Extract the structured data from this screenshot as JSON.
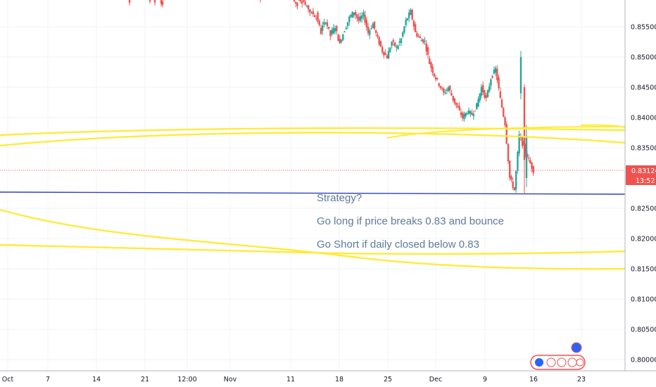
{
  "chart_data": {
    "type": "candlestick",
    "y_ticks": [
      "0.85500",
      "0.85000",
      "0.84500",
      "0.84000",
      "0.83500",
      "0.82500",
      "0.82000",
      "0.81500",
      "0.81000",
      "0.80500",
      "0.80000"
    ],
    "x_ticks": [
      "Oct",
      "7",
      "14",
      "21",
      "12:00",
      "Nov",
      "11",
      "18",
      "25",
      "Dec",
      "9",
      "16",
      "23"
    ],
    "ylim": [
      0.7975,
      0.8605
    ],
    "last_price": "0.83124",
    "countdown": "13:52",
    "annotations": [
      "Strategy?",
      "Go long if price breaks 0.83 and bounce",
      "Go Short if daily  closed below 0.83"
    ],
    "horizontal_line_price": 0.8272,
    "price_path": [
      [
        0.8595,
        0.8585
      ],
      [
        0.86,
        0.8592
      ],
      [
        0.8598,
        0.858
      ],
      [
        0.8585,
        0.857
      ],
      [
        0.8575,
        0.8565
      ],
      [
        0.857,
        0.854
      ],
      [
        0.8545,
        0.856
      ],
      [
        0.856,
        0.8535
      ],
      [
        0.8538,
        0.855
      ],
      [
        0.855,
        0.852
      ],
      [
        0.8525,
        0.8545
      ],
      [
        0.8545,
        0.8565
      ],
      [
        0.8565,
        0.8575
      ],
      [
        0.8575,
        0.856
      ],
      [
        0.856,
        0.857
      ],
      [
        0.857,
        0.854
      ],
      [
        0.854,
        0.8555
      ],
      [
        0.8555,
        0.853
      ],
      [
        0.853,
        0.851
      ],
      [
        0.851,
        0.85
      ],
      [
        0.85,
        0.8525
      ],
      [
        0.8525,
        0.8515
      ],
      [
        0.8515,
        0.853
      ],
      [
        0.853,
        0.856
      ],
      [
        0.856,
        0.8575
      ],
      [
        0.8575,
        0.854
      ],
      [
        0.854,
        0.853
      ],
      [
        0.853,
        0.8525
      ],
      [
        0.8525,
        0.849
      ],
      [
        0.849,
        0.847
      ],
      [
        0.847,
        0.8455
      ],
      [
        0.8455,
        0.844
      ],
      [
        0.844,
        0.845
      ],
      [
        0.845,
        0.843
      ],
      [
        0.843,
        0.8415
      ],
      [
        0.8415,
        0.84
      ],
      [
        0.84,
        0.841
      ],
      [
        0.841,
        0.8405
      ],
      [
        0.8405,
        0.842
      ],
      [
        0.842,
        0.845
      ],
      [
        0.845,
        0.843
      ],
      [
        0.843,
        0.8465
      ],
      [
        0.8465,
        0.848
      ],
      [
        0.848,
        0.843
      ],
      [
        0.843,
        0.839
      ],
      [
        0.839,
        0.83
      ],
      [
        0.83,
        0.828
      ],
      [
        0.828,
        0.837
      ],
      [
        0.837,
        0.835
      ],
      [
        0.835,
        0.833
      ],
      [
        0.833,
        0.8312
      ]
    ],
    "colors": {
      "up": "#26a69a",
      "down": "#ef5350",
      "trend": "#ffeb3b",
      "hline": "#2f3fbf",
      "price": "#ef5350"
    }
  }
}
